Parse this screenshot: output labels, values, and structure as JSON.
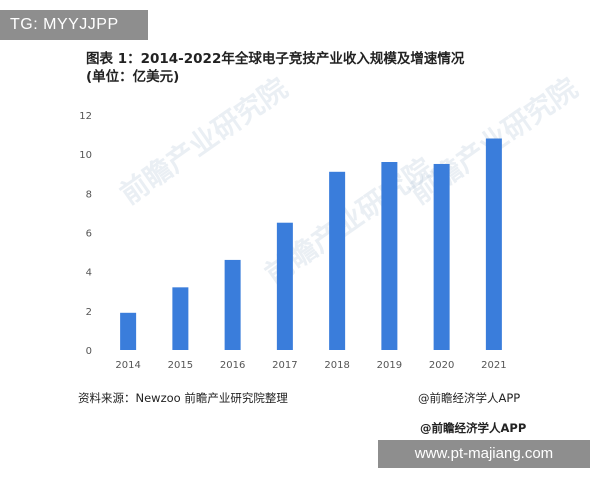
{
  "badge": {
    "text": "TG: MYYJJPP"
  },
  "title": {
    "line1": "图表 1：2014-2022年全球电子竞技产业收入规模及增速情况",
    "line2": "(单位：亿美元)"
  },
  "source_text": "资料来源：Newzoo 前瞻产业研究院整理",
  "credit_right": "@前瞻经济学人APP",
  "credit_bottom": "@前瞻经济学人APP",
  "footer_url": "www.pt-majiang.com",
  "watermark_text": "前瞻产业研究院",
  "colors": {
    "bar": "#3a7ddb",
    "axis_text": "#555555",
    "gridline": "#e6e6e6"
  },
  "chart_data": {
    "type": "bar",
    "title": "图表 1：2014-2022年全球电子竞技产业收入规模及增速情况 (单位：亿美元)",
    "xlabel": "",
    "ylabel": "",
    "categories": [
      "2014",
      "2015",
      "2016",
      "2017",
      "2018",
      "2019",
      "2020",
      "2021"
    ],
    "values": [
      1.9,
      3.2,
      4.6,
      6.5,
      9.1,
      9.6,
      9.5,
      10.8
    ],
    "ylim": [
      0,
      12
    ],
    "yticks": [
      0,
      2,
      4,
      6,
      8,
      10,
      12
    ],
    "grid": false,
    "legend": "none"
  }
}
